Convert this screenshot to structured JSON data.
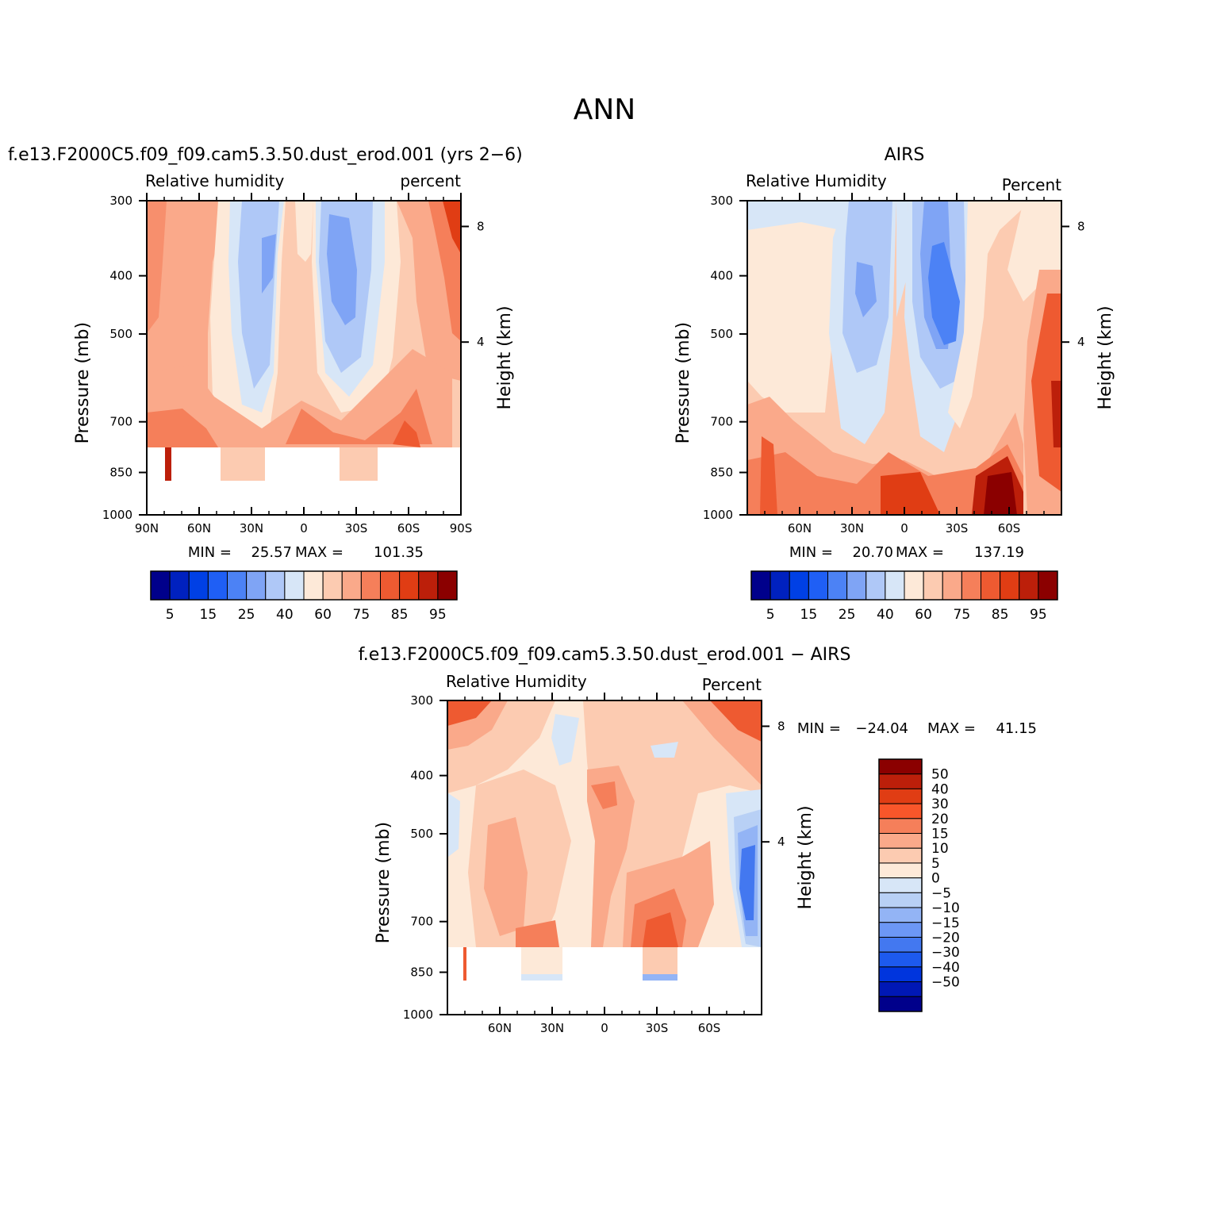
{
  "figure": {
    "title": "ANN"
  },
  "chart_data": [
    {
      "id": "model",
      "type": "contour",
      "title": "f.e13.F2000C5.f09_f09.cam5.3.50.dust_erod.001 (yrs 2−6)",
      "left_label": "Relative humidity",
      "right_label": "percent",
      "ylabel": "Pressure (mb)",
      "y2label": "Height (km)",
      "ylim": [
        1000,
        300
      ],
      "xlim": [
        90,
        -90
      ],
      "xticks": [
        "90N",
        "60N",
        "30N",
        "0",
        "30S",
        "60S",
        "90S"
      ],
      "yticks": [
        "300",
        "400",
        "500",
        "700",
        "850",
        "1000"
      ],
      "y2ticks": [
        "8",
        "4"
      ],
      "min_label": "MIN =",
      "min_value": "25.57",
      "max_label": "MAX =",
      "max_value": "101.35",
      "colorbar": {
        "orientation": "horizontal",
        "colors": [
          "#00008B",
          "#0021BF",
          "#0040E5",
          "#1F5FF5",
          "#4C82F5",
          "#7FA4F5",
          "#AFC8F7",
          "#D7E6F7",
          "#FDE9D8",
          "#FCCBB1",
          "#FAA98A",
          "#F57F5A",
          "#EE5A31",
          "#E03D14",
          "#BC1F0A",
          "#8B0000"
        ],
        "labels": [
          "5",
          "15",
          "25",
          "40",
          "60",
          "75",
          "85",
          "95"
        ]
      }
    },
    {
      "id": "obs",
      "type": "contour",
      "title": "AIRS",
      "left_label": "Relative Humidity",
      "right_label": "Percent",
      "ylabel": "Pressure (mb)",
      "y2label": "Height (km)",
      "ylim": [
        1000,
        300
      ],
      "xlim": [
        90,
        -90
      ],
      "xticks": [
        "60N",
        "30N",
        "0",
        "30S",
        "60S"
      ],
      "yticks": [
        "300",
        "400",
        "500",
        "700",
        "850",
        "1000"
      ],
      "y2ticks": [
        "8",
        "4"
      ],
      "min_label": "MIN =",
      "min_value": "20.70",
      "max_label": "MAX =",
      "max_value": "137.19",
      "colorbar": {
        "orientation": "horizontal",
        "colors": [
          "#00008B",
          "#0021BF",
          "#0040E5",
          "#1F5FF5",
          "#4C82F5",
          "#7FA4F5",
          "#AFC8F7",
          "#D7E6F7",
          "#FDE9D8",
          "#FCCBB1",
          "#FAA98A",
          "#F57F5A",
          "#EE5A31",
          "#E03D14",
          "#BC1F0A",
          "#8B0000"
        ],
        "labels": [
          "5",
          "15",
          "25",
          "40",
          "60",
          "75",
          "85",
          "95"
        ]
      }
    },
    {
      "id": "diff",
      "type": "contour",
      "title": "f.e13.F2000C5.f09_f09.cam5.3.50.dust_erod.001 − AIRS",
      "left_label": "Relative Humidity",
      "right_label": "Percent",
      "ylabel": "Pressure (mb)",
      "y2label": "Height (km)",
      "ylim": [
        1000,
        300
      ],
      "xlim": [
        90,
        -90
      ],
      "xticks": [
        "60N",
        "30N",
        "0",
        "30S",
        "60S"
      ],
      "yticks": [
        "300",
        "400",
        "500",
        "700",
        "850",
        "1000"
      ],
      "y2ticks": [
        "8",
        "4"
      ],
      "min_label": "MIN =",
      "min_value": "−24.04",
      "max_label": "MAX =",
      "max_value": "41.15",
      "colorbar": {
        "orientation": "vertical",
        "colors": [
          "#8B0000",
          "#BC1F0A",
          "#E03D14",
          "#F9562A",
          "#F57F5A",
          "#FAA98A",
          "#FCCBB1",
          "#FDE9D8",
          "#D7E6F7",
          "#B8D0F5",
          "#93B4F5",
          "#6C97F5",
          "#4378F0",
          "#1D5AEE",
          "#0035DD",
          "#0018B5",
          "#00008B"
        ],
        "labels": [
          "50",
          "40",
          "30",
          "20",
          "15",
          "10",
          "5",
          "0",
          "−5",
          "−10",
          "−15",
          "−20",
          "−30",
          "−40",
          "−50"
        ]
      }
    }
  ]
}
